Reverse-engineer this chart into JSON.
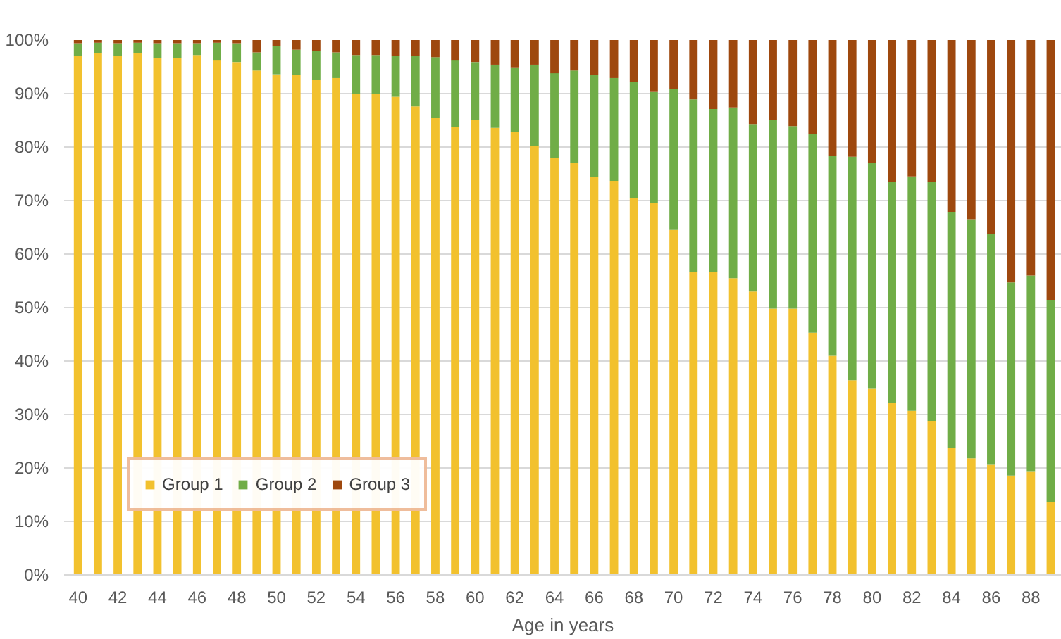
{
  "chart_data": {
    "type": "bar",
    "stacked": true,
    "xlabel": "Age in years",
    "categories": [
      "40",
      null,
      "42",
      null,
      "44",
      null,
      "46",
      null,
      "48",
      null,
      "50",
      null,
      "52",
      null,
      "54",
      null,
      "56",
      null,
      "58",
      null,
      "60",
      null,
      "62",
      null,
      "64",
      null,
      "66",
      null,
      "68",
      null,
      "70",
      null,
      "72",
      null,
      "74",
      null,
      "76",
      null,
      "78",
      null,
      "80",
      null,
      "82",
      null,
      "84",
      null,
      "86",
      null,
      "88",
      null
    ],
    "series": [
      {
        "name": "Group 1",
        "color": "#f2c12e",
        "values": [
          97.0,
          97.5,
          97.0,
          97.5,
          96.6,
          96.6,
          97.2,
          96.3,
          95.9,
          94.3,
          93.6,
          93.5,
          92.6,
          92.9,
          90.0,
          90.0,
          89.4,
          87.6,
          85.4,
          83.7,
          85.0,
          83.6,
          82.9,
          80.2,
          77.9,
          77.1,
          74.4,
          73.7,
          70.5,
          69.6,
          64.5,
          56.7,
          56.7,
          55.5,
          53.0,
          49.8,
          49.8,
          45.3,
          41.0,
          36.4,
          34.8,
          32.1,
          30.7,
          28.8,
          23.8,
          21.8,
          20.6,
          18.6,
          19.4,
          13.6
        ]
      },
      {
        "name": "Group 2",
        "color": "#70ad47",
        "values": [
          2.4,
          2.0,
          2.4,
          2.0,
          2.8,
          2.8,
          2.2,
          3.2,
          3.5,
          3.4,
          5.3,
          4.7,
          5.3,
          4.8,
          7.2,
          7.2,
          7.6,
          9.4,
          11.4,
          12.6,
          10.9,
          11.8,
          12.0,
          15.2,
          15.9,
          17.2,
          19.1,
          19.2,
          21.7,
          20.7,
          26.3,
          32.2,
          30.4,
          31.9,
          31.3,
          35.3,
          34.1,
          37.2,
          37.3,
          41.8,
          42.3,
          41.4,
          43.8,
          44.7,
          44.1,
          44.7,
          43.2,
          36.1,
          36.6,
          37.8
        ]
      },
      {
        "name": "Group 3",
        "color": "#9e480e",
        "values": [
          0.6,
          0.5,
          0.6,
          0.5,
          0.6,
          0.6,
          0.6,
          0.5,
          0.6,
          2.3,
          1.1,
          1.8,
          2.1,
          2.3,
          2.8,
          2.8,
          3.0,
          3.0,
          3.2,
          3.7,
          4.1,
          4.6,
          5.1,
          4.6,
          6.2,
          5.7,
          6.5,
          7.1,
          7.8,
          9.7,
          9.2,
          11.1,
          12.9,
          12.6,
          15.7,
          14.9,
          16.1,
          17.5,
          21.7,
          21.8,
          22.9,
          26.5,
          25.5,
          26.5,
          32.1,
          33.5,
          36.2,
          45.3,
          44.0,
          48.6
        ]
      }
    ],
    "ylim": [
      0,
      100
    ],
    "yticks": [
      {
        "value": 0,
        "label": "0%"
      },
      {
        "value": 10,
        "label": "10%"
      },
      {
        "value": 20,
        "label": "20%"
      },
      {
        "value": 30,
        "label": "30%"
      },
      {
        "value": 40,
        "label": "40%"
      },
      {
        "value": 50,
        "label": "50%"
      },
      {
        "value": 60,
        "label": "60%"
      },
      {
        "value": 70,
        "label": "70%"
      },
      {
        "value": 80,
        "label": "80%"
      },
      {
        "value": 90,
        "label": "90%"
      },
      {
        "value": 100,
        "label": "100%"
      }
    ],
    "grid": "y",
    "legend": "bottom left"
  }
}
